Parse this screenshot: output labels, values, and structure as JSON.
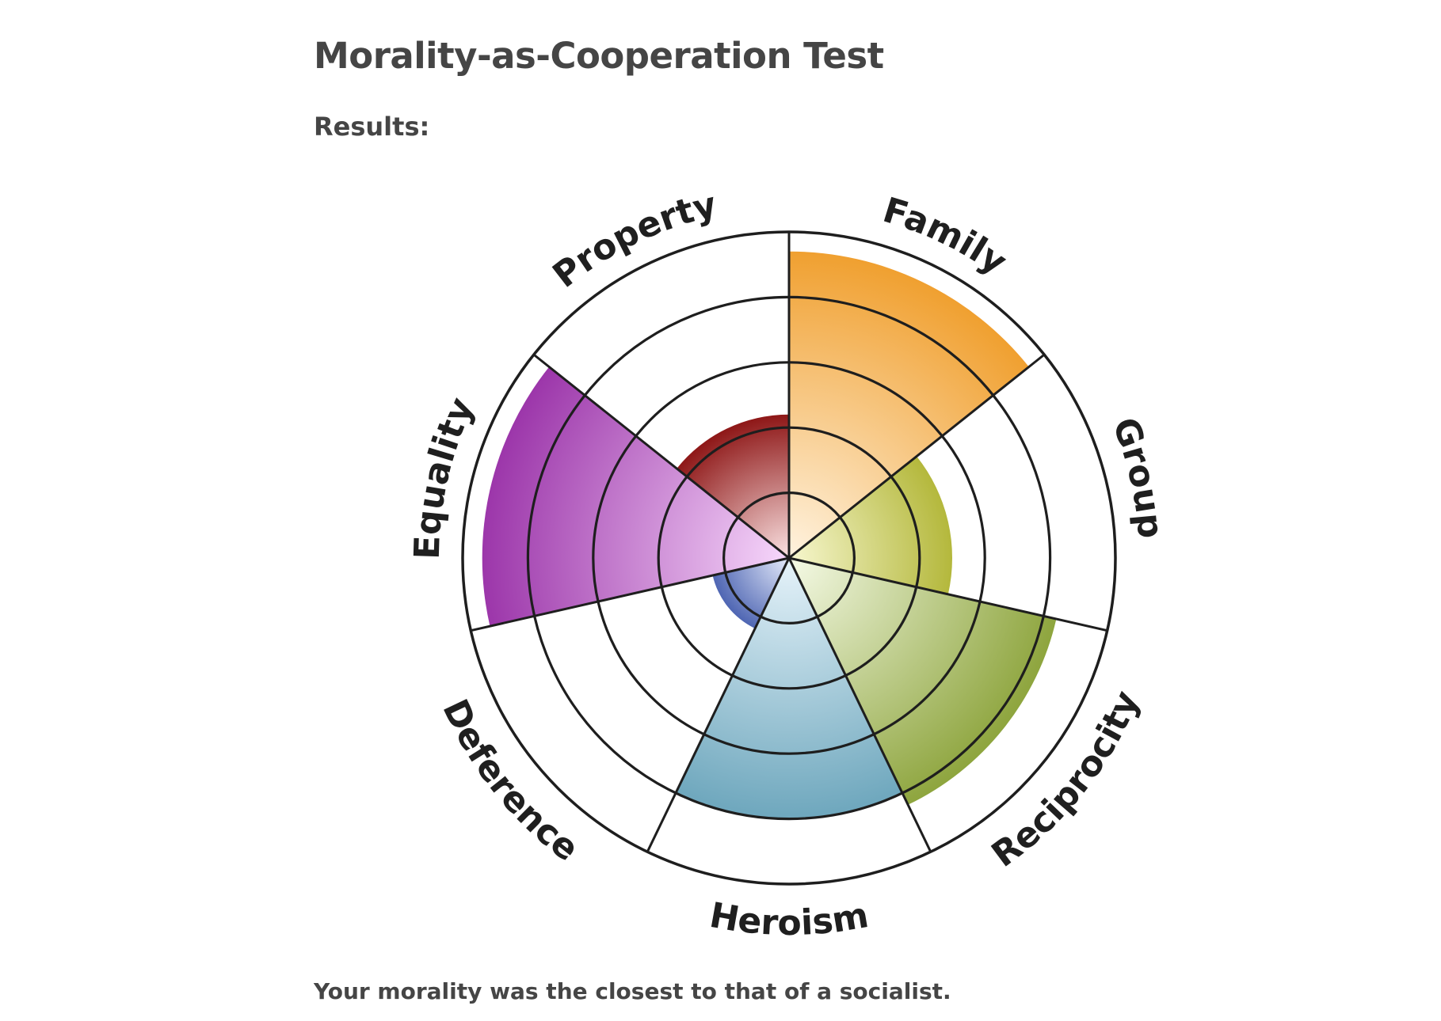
{
  "header": {
    "title": "Morality-as-Cooperation Test",
    "results_label": "Results:"
  },
  "footer": {
    "conclusion": "Your morality was the closest to that of a socialist."
  },
  "chart_data": {
    "type": "polar-area",
    "scale_max": 5,
    "rings": 5,
    "grid": true,
    "categories": [
      "Family",
      "Group",
      "Reciprocity",
      "Heroism",
      "Deference",
      "Equality",
      "Property"
    ],
    "values": [
      4.7,
      2.5,
      4.2,
      4.0,
      1.2,
      4.7,
      2.2
    ],
    "colors": [
      "#f0a030",
      "#b4b83c",
      "#8ea53e",
      "#6ea7bd",
      "#4f66b3",
      "#9c36aa",
      "#8e1717"
    ],
    "center_colors": [
      "#fff3e0",
      "#f7f7cf",
      "#f5fae6",
      "#e6f3fa",
      "#e6ecfb",
      "#f7d8fb",
      "#fbe3e3"
    ]
  }
}
